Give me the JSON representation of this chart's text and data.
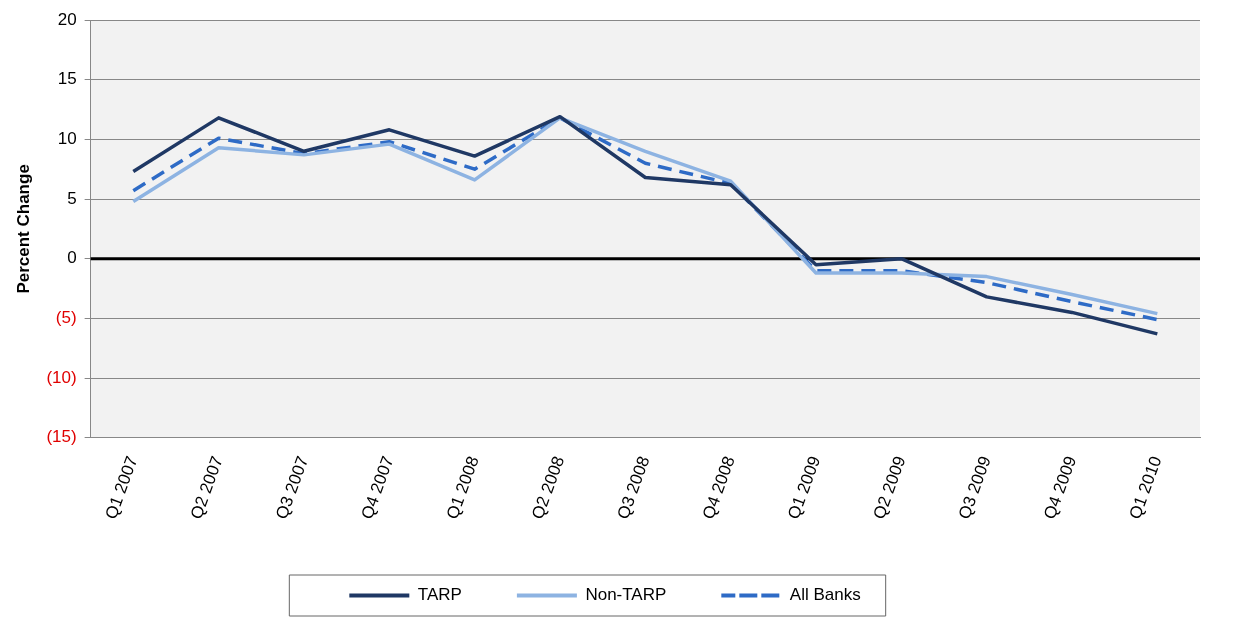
{
  "chart_data": {
    "type": "line",
    "ylabel": "Percent Change",
    "categories": [
      "Q1 2007",
      "Q2 2007",
      "Q3 2007",
      "Q4 2007",
      "Q1 2008",
      "Q2 2008",
      "Q3 2008",
      "Q4 2008",
      "Q1 2009",
      "Q2 2009",
      "Q3 2009",
      "Q4 2009",
      "Q1 2010"
    ],
    "series": [
      {
        "name": "TARP",
        "color": "#1f3864",
        "line_style": "solid",
        "values": [
          7.3,
          11.8,
          9.0,
          10.8,
          8.6,
          11.9,
          6.8,
          6.2,
          -0.5,
          0,
          -3.2,
          -4.5,
          -6.3
        ]
      },
      {
        "name": "Non-TARP",
        "color": "#8db3e2",
        "line_style": "solid",
        "values": [
          4.8,
          9.3,
          8.7,
          9.6,
          6.6,
          11.8,
          9.0,
          6.5,
          -1.2,
          -1.2,
          -1.5,
          -3.0,
          -4.6
        ]
      },
      {
        "name": "All Banks",
        "color": "#2e6bc6",
        "line_style": "dashed",
        "values": [
          5.7,
          10.1,
          8.8,
          9.8,
          7.5,
          11.8,
          8.0,
          6.3,
          -1.0,
          -1.0,
          -2.0,
          -3.6,
          -5.1
        ]
      }
    ],
    "ylim": [
      -15,
      20
    ],
    "yticks": [
      {
        "value": -15,
        "label": "(15)"
      },
      {
        "value": -10,
        "label": "(10)"
      },
      {
        "value": -5,
        "label": "(5)"
      },
      0,
      5,
      10,
      15,
      20
    ],
    "ref_lines": [
      {
        "axis": "y",
        "value": 0,
        "color": "#000000"
      }
    ],
    "grid": "y",
    "legend": "bottom",
    "marker": "none"
  }
}
